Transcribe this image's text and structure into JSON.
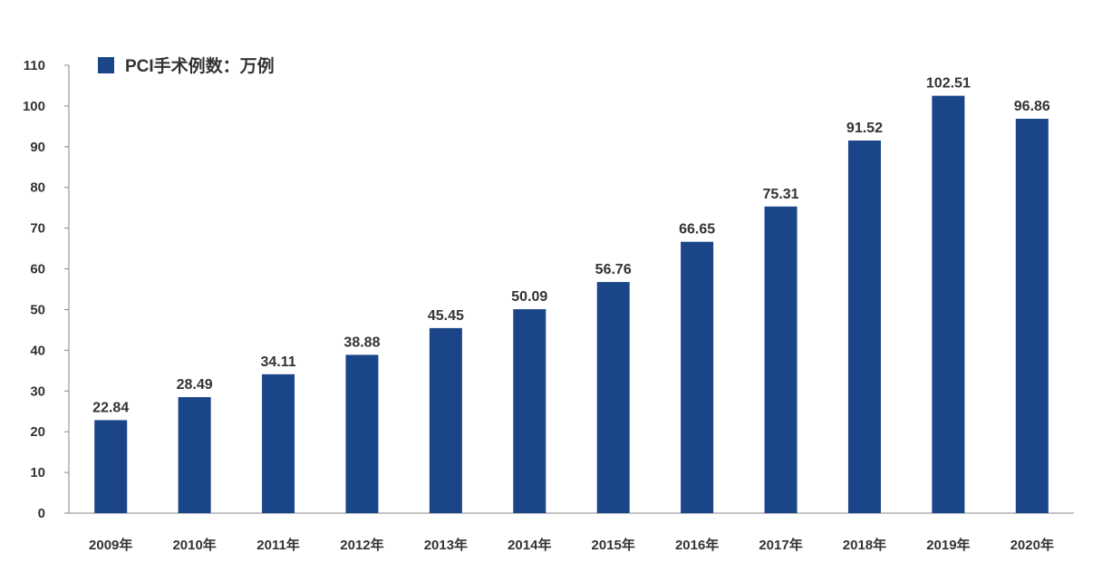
{
  "chart_data": {
    "type": "bar",
    "categories": [
      "2009年",
      "2010年",
      "2011年",
      "2012年",
      "2013年",
      "2014年",
      "2015年",
      "2016年",
      "2017年",
      "2018年",
      "2019年",
      "2020年"
    ],
    "series": [
      {
        "name": "PCI手术例数：万例",
        "values": [
          22.84,
          28.49,
          34.11,
          38.88,
          45.45,
          50.09,
          56.76,
          66.65,
          75.31,
          91.52,
          102.51,
          96.86
        ],
        "value_labels": [
          "22.84",
          "28.49",
          "34.11",
          "38.88",
          "45.45",
          "50.09",
          "56.76",
          "66.65",
          "75.31",
          "91.52",
          "102.51",
          "96.86"
        ],
        "color": "#1b4589"
      }
    ],
    "ylim": [
      0,
      110
    ],
    "yticks": [
      0,
      10,
      20,
      30,
      40,
      50,
      60,
      70,
      80,
      90,
      100,
      110
    ],
    "ytick_labels": [
      "0",
      "10",
      "20",
      "30",
      "40",
      "50",
      "60",
      "70",
      "80",
      "90",
      "100",
      "110"
    ],
    "legend_position": "top-left",
    "grid": false,
    "axis_color": "#888888",
    "text_color": "#333333"
  }
}
